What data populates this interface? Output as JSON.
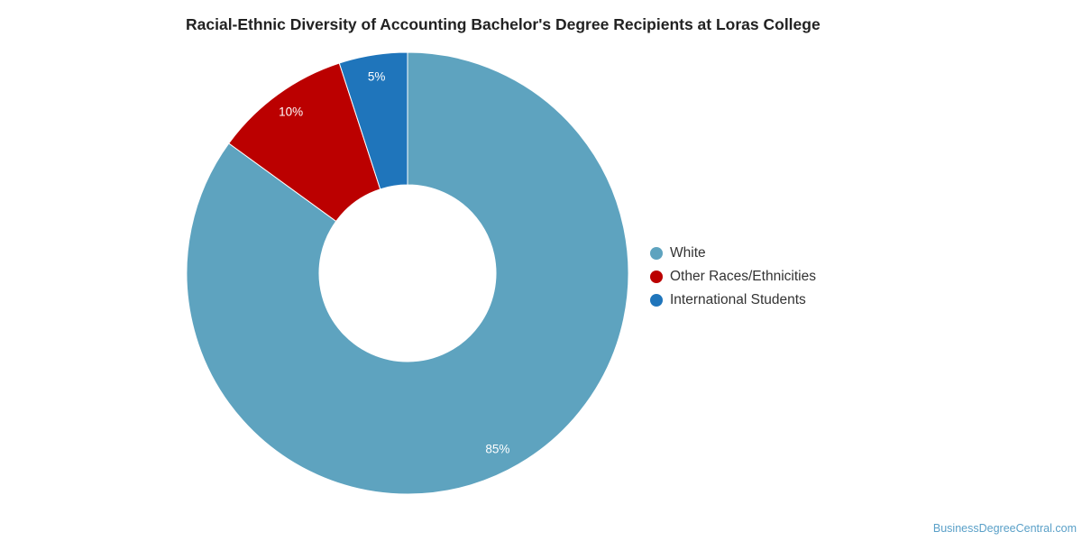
{
  "chart_data": {
    "type": "pie",
    "title": "Racial-Ethnic Diversity of Accounting Bachelor's Degree Recipients at Loras College",
    "donut": true,
    "slices": [
      {
        "label": "White",
        "value": 85,
        "display": "85%",
        "color": "#5ea3bf"
      },
      {
        "label": "Other Races/Ethnicities",
        "value": 10,
        "display": "10%",
        "color": "#bb0000"
      },
      {
        "label": "International Students",
        "value": 5,
        "display": "5%",
        "color": "#1f75bb"
      }
    ],
    "legend_position": "right"
  },
  "watermark": "BusinessDegreeCentral.com"
}
